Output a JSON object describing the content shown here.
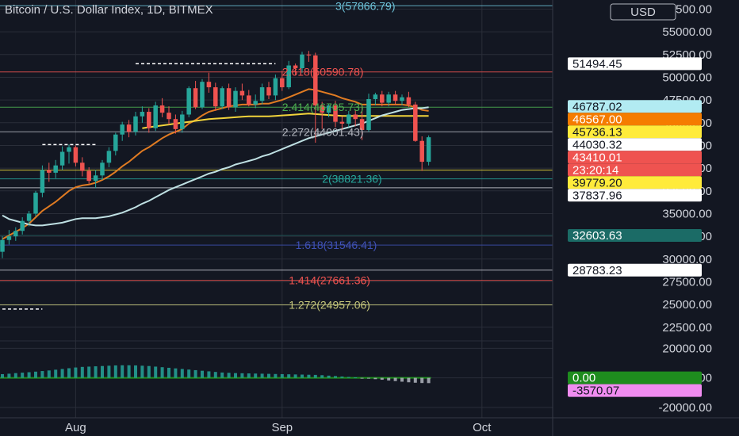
{
  "header": {
    "title": "Bitcoin / U.S. Dollar Index, 1D, BITMEX",
    "currency_button": "USD"
  },
  "colors": {
    "background": "#131722",
    "grid": "#2a2e39",
    "up": "#26a69a",
    "down": "#ef5350",
    "ema_short": "#e07b22",
    "ema_mid": "#f2d43b",
    "ema_long": "#bfe0e3",
    "volume": "#26a69a"
  },
  "chart_data": [
    {
      "type": "candlestick",
      "title": "Bitcoin / U.S. Dollar Index, 1D, BITMEX",
      "y_axis": {
        "unit": "USD",
        "ylim": [
          21000,
          58500
        ],
        "ticks": [
          22500,
          25000,
          27500,
          30000,
          32500,
          35000,
          37500,
          40000,
          42500,
          45000,
          47500,
          50000,
          52500,
          55000,
          57500
        ],
        "tick_labels": [
          "22500.00",
          "25000.00",
          "27500.00",
          "30000.00",
          "32500.00",
          "35000.00",
          "37500.00",
          "40000.00",
          "42500.00",
          "45000.00",
          "47500.00",
          "50000.00",
          "52500.00",
          "55000.00",
          "57500.00"
        ],
        "scale": "linear",
        "position": "right"
      },
      "x_axis": {
        "ticks": [
          {
            "label": "Aug",
            "index": 11
          },
          {
            "label": "Sep",
            "index": 42
          },
          {
            "label": "Oct",
            "index": 72
          }
        ],
        "n_slots": 80
      },
      "candles": [
        {
          "o": 30800,
          "h": 32500,
          "l": 30100,
          "c": 32100
        },
        {
          "o": 32100,
          "h": 33200,
          "l": 31600,
          "c": 32500
        },
        {
          "o": 32500,
          "h": 33500,
          "l": 32000,
          "c": 33100
        },
        {
          "o": 33100,
          "h": 34600,
          "l": 32700,
          "c": 34200
        },
        {
          "o": 34200,
          "h": 35300,
          "l": 33600,
          "c": 35000
        },
        {
          "o": 35000,
          "h": 37500,
          "l": 34700,
          "c": 37300
        },
        {
          "o": 37300,
          "h": 40300,
          "l": 36800,
          "c": 39800
        },
        {
          "o": 39800,
          "h": 40600,
          "l": 38500,
          "c": 39500
        },
        {
          "o": 39500,
          "h": 40900,
          "l": 38900,
          "c": 40300
        },
        {
          "o": 40300,
          "h": 42400,
          "l": 39800,
          "c": 41800
        },
        {
          "o": 41800,
          "h": 42600,
          "l": 40500,
          "c": 42300
        },
        {
          "o": 42300,
          "h": 42500,
          "l": 40200,
          "c": 40600
        },
        {
          "o": 40600,
          "h": 41200,
          "l": 39100,
          "c": 39700
        },
        {
          "o": 39700,
          "h": 40100,
          "l": 38300,
          "c": 38600
        },
        {
          "o": 38600,
          "h": 39800,
          "l": 37800,
          "c": 39200
        },
        {
          "o": 39200,
          "h": 40900,
          "l": 38700,
          "c": 40600
        },
        {
          "o": 40600,
          "h": 42300,
          "l": 40100,
          "c": 41900
        },
        {
          "o": 41900,
          "h": 43900,
          "l": 41400,
          "c": 43700
        },
        {
          "o": 43700,
          "h": 45100,
          "l": 43000,
          "c": 44800
        },
        {
          "o": 44800,
          "h": 45300,
          "l": 43400,
          "c": 44000
        },
        {
          "o": 44000,
          "h": 46200,
          "l": 43600,
          "c": 45700
        },
        {
          "o": 45700,
          "h": 46800,
          "l": 45000,
          "c": 46200
        },
        {
          "o": 46200,
          "h": 46600,
          "l": 43900,
          "c": 44400
        },
        {
          "o": 44400,
          "h": 47300,
          "l": 44100,
          "c": 46900
        },
        {
          "o": 46900,
          "h": 47700,
          "l": 45600,
          "c": 46100
        },
        {
          "o": 46100,
          "h": 46800,
          "l": 44800,
          "c": 45400
        },
        {
          "o": 45400,
          "h": 45900,
          "l": 43800,
          "c": 44300
        },
        {
          "o": 44300,
          "h": 46300,
          "l": 43900,
          "c": 45900
        },
        {
          "o": 45900,
          "h": 49000,
          "l": 45600,
          "c": 48800
        },
        {
          "o": 48800,
          "h": 49600,
          "l": 46500,
          "c": 46700
        },
        {
          "o": 46700,
          "h": 49800,
          "l": 46500,
          "c": 49500
        },
        {
          "o": 49500,
          "h": 50500,
          "l": 48300,
          "c": 48900
        },
        {
          "o": 48900,
          "h": 49400,
          "l": 46300,
          "c": 46800
        },
        {
          "o": 46800,
          "h": 49000,
          "l": 46500,
          "c": 48800
        },
        {
          "o": 48800,
          "h": 49300,
          "l": 46400,
          "c": 46700
        },
        {
          "o": 46700,
          "h": 48900,
          "l": 46200,
          "c": 48500
        },
        {
          "o": 48500,
          "h": 49300,
          "l": 47500,
          "c": 48000
        },
        {
          "o": 48000,
          "h": 48600,
          "l": 46800,
          "c": 47000
        },
        {
          "o": 47000,
          "h": 48100,
          "l": 46600,
          "c": 47400
        },
        {
          "o": 47400,
          "h": 49300,
          "l": 47000,
          "c": 48900
        },
        {
          "o": 48900,
          "h": 49500,
          "l": 47600,
          "c": 48000
        },
        {
          "o": 48000,
          "h": 50300,
          "l": 47500,
          "c": 49900
        },
        {
          "o": 49900,
          "h": 50700,
          "l": 48500,
          "c": 48900
        },
        {
          "o": 48900,
          "h": 51800,
          "l": 48700,
          "c": 51300
        },
        {
          "o": 51300,
          "h": 51500,
          "l": 50200,
          "c": 51000
        },
        {
          "o": 51000,
          "h": 52800,
          "l": 50500,
          "c": 52500
        },
        {
          "o": 52500,
          "h": 52900,
          "l": 51700,
          "c": 52400
        },
        {
          "o": 52400,
          "h": 52700,
          "l": 42800,
          "c": 46900
        },
        {
          "o": 46900,
          "h": 47300,
          "l": 44300,
          "c": 46100
        },
        {
          "o": 46100,
          "h": 47100,
          "l": 45600,
          "c": 46900
        },
        {
          "o": 46900,
          "h": 47400,
          "l": 44500,
          "c": 45100
        },
        {
          "o": 45100,
          "h": 45700,
          "l": 44200,
          "c": 44900
        },
        {
          "o": 44900,
          "h": 46300,
          "l": 44500,
          "c": 45900
        },
        {
          "o": 45900,
          "h": 46400,
          "l": 44600,
          "c": 45400
        },
        {
          "o": 45400,
          "h": 46800,
          "l": 43100,
          "c": 44200
        },
        {
          "o": 44200,
          "h": 48200,
          "l": 44000,
          "c": 47600
        },
        {
          "o": 47600,
          "h": 48300,
          "l": 46900,
          "c": 48100
        },
        {
          "o": 48100,
          "h": 48500,
          "l": 46800,
          "c": 47200
        },
        {
          "o": 47200,
          "h": 48400,
          "l": 46800,
          "c": 48100
        },
        {
          "o": 48100,
          "h": 48500,
          "l": 47000,
          "c": 47400
        },
        {
          "o": 47400,
          "h": 48100,
          "l": 46900,
          "c": 47800
        },
        {
          "o": 47800,
          "h": 48400,
          "l": 46700,
          "c": 47000
        },
        {
          "o": 47000,
          "h": 47300,
          "l": 42900,
          "c": 43000
        },
        {
          "o": 43000,
          "h": 43500,
          "l": 39700,
          "c": 40700
        },
        {
          "o": 40700,
          "h": 43600,
          "l": 40300,
          "c": 43400
        }
      ],
      "moving_averages": [
        {
          "color_key": "ema_short",
          "values": [
            32200,
            32600,
            33000,
            33400,
            33900,
            34600,
            35300,
            35800,
            36300,
            36900,
            37500,
            37900,
            38100,
            38200,
            38400,
            38700,
            39100,
            39600,
            40200,
            40700,
            41300,
            41900,
            42300,
            42800,
            43300,
            43700,
            44000,
            44300,
            44900,
            45300,
            45800,
            46200,
            46400,
            46600,
            46800,
            46900,
            47000,
            47000,
            47000,
            47100,
            47100,
            47300,
            47500,
            47800,
            48100,
            48400,
            48700,
            48600,
            48400,
            48200,
            48000,
            47700,
            47500,
            47300,
            47000,
            47000,
            47000,
            47000,
            47000,
            47000,
            47000,
            46900,
            46700,
            46400,
            46300
          ]
        },
        {
          "color_key": "ema_mid",
          "values": [
            null,
            null,
            null,
            null,
            null,
            null,
            null,
            null,
            null,
            null,
            null,
            null,
            null,
            null,
            null,
            null,
            null,
            null,
            null,
            null,
            null,
            44400,
            44500,
            44600,
            44700,
            44800,
            44900,
            45000,
            45100,
            45200,
            45300,
            45400,
            45450,
            45500,
            45550,
            45600,
            45650,
            45700,
            45700,
            45700,
            45700,
            45750,
            45800,
            45850,
            45900,
            45950,
            46000,
            45950,
            45900,
            45850,
            45800,
            45750,
            45750,
            45750,
            45750,
            45750,
            45750,
            45750,
            45750,
            45750,
            45750,
            45750,
            45750,
            45750,
            45750
          ]
        },
        {
          "color_key": "ema_long",
          "values": [
            34800,
            34400,
            34200,
            34000,
            33800,
            33700,
            33700,
            33800,
            33900,
            34000,
            34200,
            34400,
            34500,
            34500,
            34500,
            34600,
            34700,
            34900,
            35100,
            35400,
            35700,
            36100,
            36400,
            36800,
            37200,
            37600,
            37900,
            38200,
            38500,
            38800,
            39100,
            39400,
            39600,
            39900,
            40100,
            40400,
            40600,
            40800,
            41000,
            41300,
            41500,
            41800,
            42100,
            42400,
            42700,
            43000,
            43300,
            43500,
            43700,
            43900,
            44100,
            44300,
            44500,
            44700,
            44900,
            45200,
            45500,
            45800,
            46000,
            46200,
            46400,
            46500,
            46600,
            46600,
            46700
          ]
        }
      ],
      "fib_levels": [
        {
          "label": "3(57866.79)",
          "value": 57866.79,
          "color": "#6ec3d9",
          "label_index": 50
        },
        {
          "label": "2.618(50590.78)",
          "value": 50590.78,
          "color": "#ef5350",
          "label_index": 42
        },
        {
          "label": "2.414(46705.73)",
          "value": 46705.73,
          "color": "#4caf50",
          "label_index": 42
        },
        {
          "label": "2.272(44001.43)",
          "value": 44001.43,
          "color": "#b2b5be",
          "label_index": 42
        },
        {
          "label": "2(38821.36)",
          "value": 38821.36,
          "color": "#26a69a",
          "label_index": 48
        },
        {
          "label": "1.618(31546.41)",
          "value": 31546.41,
          "color": "#3f51b5",
          "label_index": 44
        },
        {
          "label": "1.414(27661.36)",
          "value": 27661.36,
          "color": "#ef5350",
          "label_index": 43
        },
        {
          "label": "1.272(24957.06)",
          "value": 24957.06,
          "color": "#c5c77a",
          "label_index": 43
        }
      ],
      "horizontal_lines": [
        {
          "value": 39779.2,
          "color": "#ffeb3b"
        },
        {
          "value": 37837.96,
          "color": "#d1d4dc"
        },
        {
          "value": 32603.63,
          "color": "#1b5e5c"
        },
        {
          "value": 28783.23,
          "color": "#d1d4dc"
        }
      ],
      "dashed_lines": [
        {
          "value": 51494.45,
          "from_index": 20,
          "to_index": 41,
          "color": "#ffffff"
        },
        {
          "value": 42600,
          "from_index": 6,
          "to_index": 14,
          "color": "#ffffff"
        },
        {
          "value": 24500,
          "from_index": 0,
          "to_index": 6,
          "color": "#ffffff"
        }
      ],
      "price_tags": [
        {
          "text": "51494.45",
          "value": 51494.45,
          "bg": "#ffffff",
          "fg": "#131722"
        },
        {
          "text": "46787.02",
          "value": 46787.02,
          "bg": "#b2ebf2",
          "fg": "#131722"
        },
        {
          "text": "46567.00",
          "value": 46567.0,
          "bg": "#f57c00",
          "fg": "#ffffff"
        },
        {
          "text": "45736.13",
          "value": 45736.13,
          "bg": "#ffeb3b",
          "fg": "#131722"
        },
        {
          "text": "44030.32",
          "value": 44030.32,
          "bg": "#ffffff",
          "fg": "#131722"
        },
        {
          "text": "43410.01",
          "value": 43410.01,
          "bg": "#ef5350",
          "fg": "#ffffff"
        },
        {
          "text": "23:20:14",
          "value": 42290,
          "bg": "#ef5350",
          "fg": "#ffffff"
        },
        {
          "text": "39779.20",
          "value": 39779.2,
          "bg": "#ffeb3b",
          "fg": "#131722"
        },
        {
          "text": "37837.96",
          "value": 37837.96,
          "bg": "#ffffff",
          "fg": "#131722"
        },
        {
          "text": "32603.63",
          "value": 32603.63,
          "bg": "#1b6b66",
          "fg": "#ffffff"
        },
        {
          "text": "28783.23",
          "value": 28783.23,
          "bg": "#ffffff",
          "fg": "#131722"
        }
      ]
    },
    {
      "type": "bar",
      "title": "",
      "y_axis": {
        "ticks": [
          20000,
          0,
          -20000
        ],
        "tick_labels": [
          "20000.00",
          "0.00",
          "-20000.00"
        ],
        "ylim": [
          -27000,
          25000
        ]
      },
      "values": [
        2500,
        2800,
        3200,
        3500,
        3800,
        4200,
        4600,
        5000,
        5500,
        6000,
        6500,
        7000,
        7400,
        7600,
        7800,
        8000,
        8200,
        8400,
        8500,
        8500,
        8400,
        8200,
        8000,
        7600,
        7200,
        6800,
        6400,
        6000,
        5600,
        5200,
        4800,
        4400,
        4000,
        3600,
        3400,
        3200,
        3100,
        3000,
        2900,
        2800,
        2700,
        2600,
        2500,
        2400,
        2300,
        2200,
        2100,
        2000,
        1800,
        1500,
        1200,
        900,
        600,
        300,
        -200,
        -500,
        -900,
        -1300,
        -1800,
        -2200,
        -2600,
        -3000,
        -3300,
        -3500,
        -3570.07
      ],
      "price_tags": [
        {
          "text": "0.00",
          "value": 0,
          "bg": "#1e8c1e",
          "fg": "#ffffff"
        },
        {
          "text": "-3570.07",
          "value": -3570.07,
          "bg": "#f08cf0",
          "fg": "#131722"
        }
      ]
    }
  ]
}
